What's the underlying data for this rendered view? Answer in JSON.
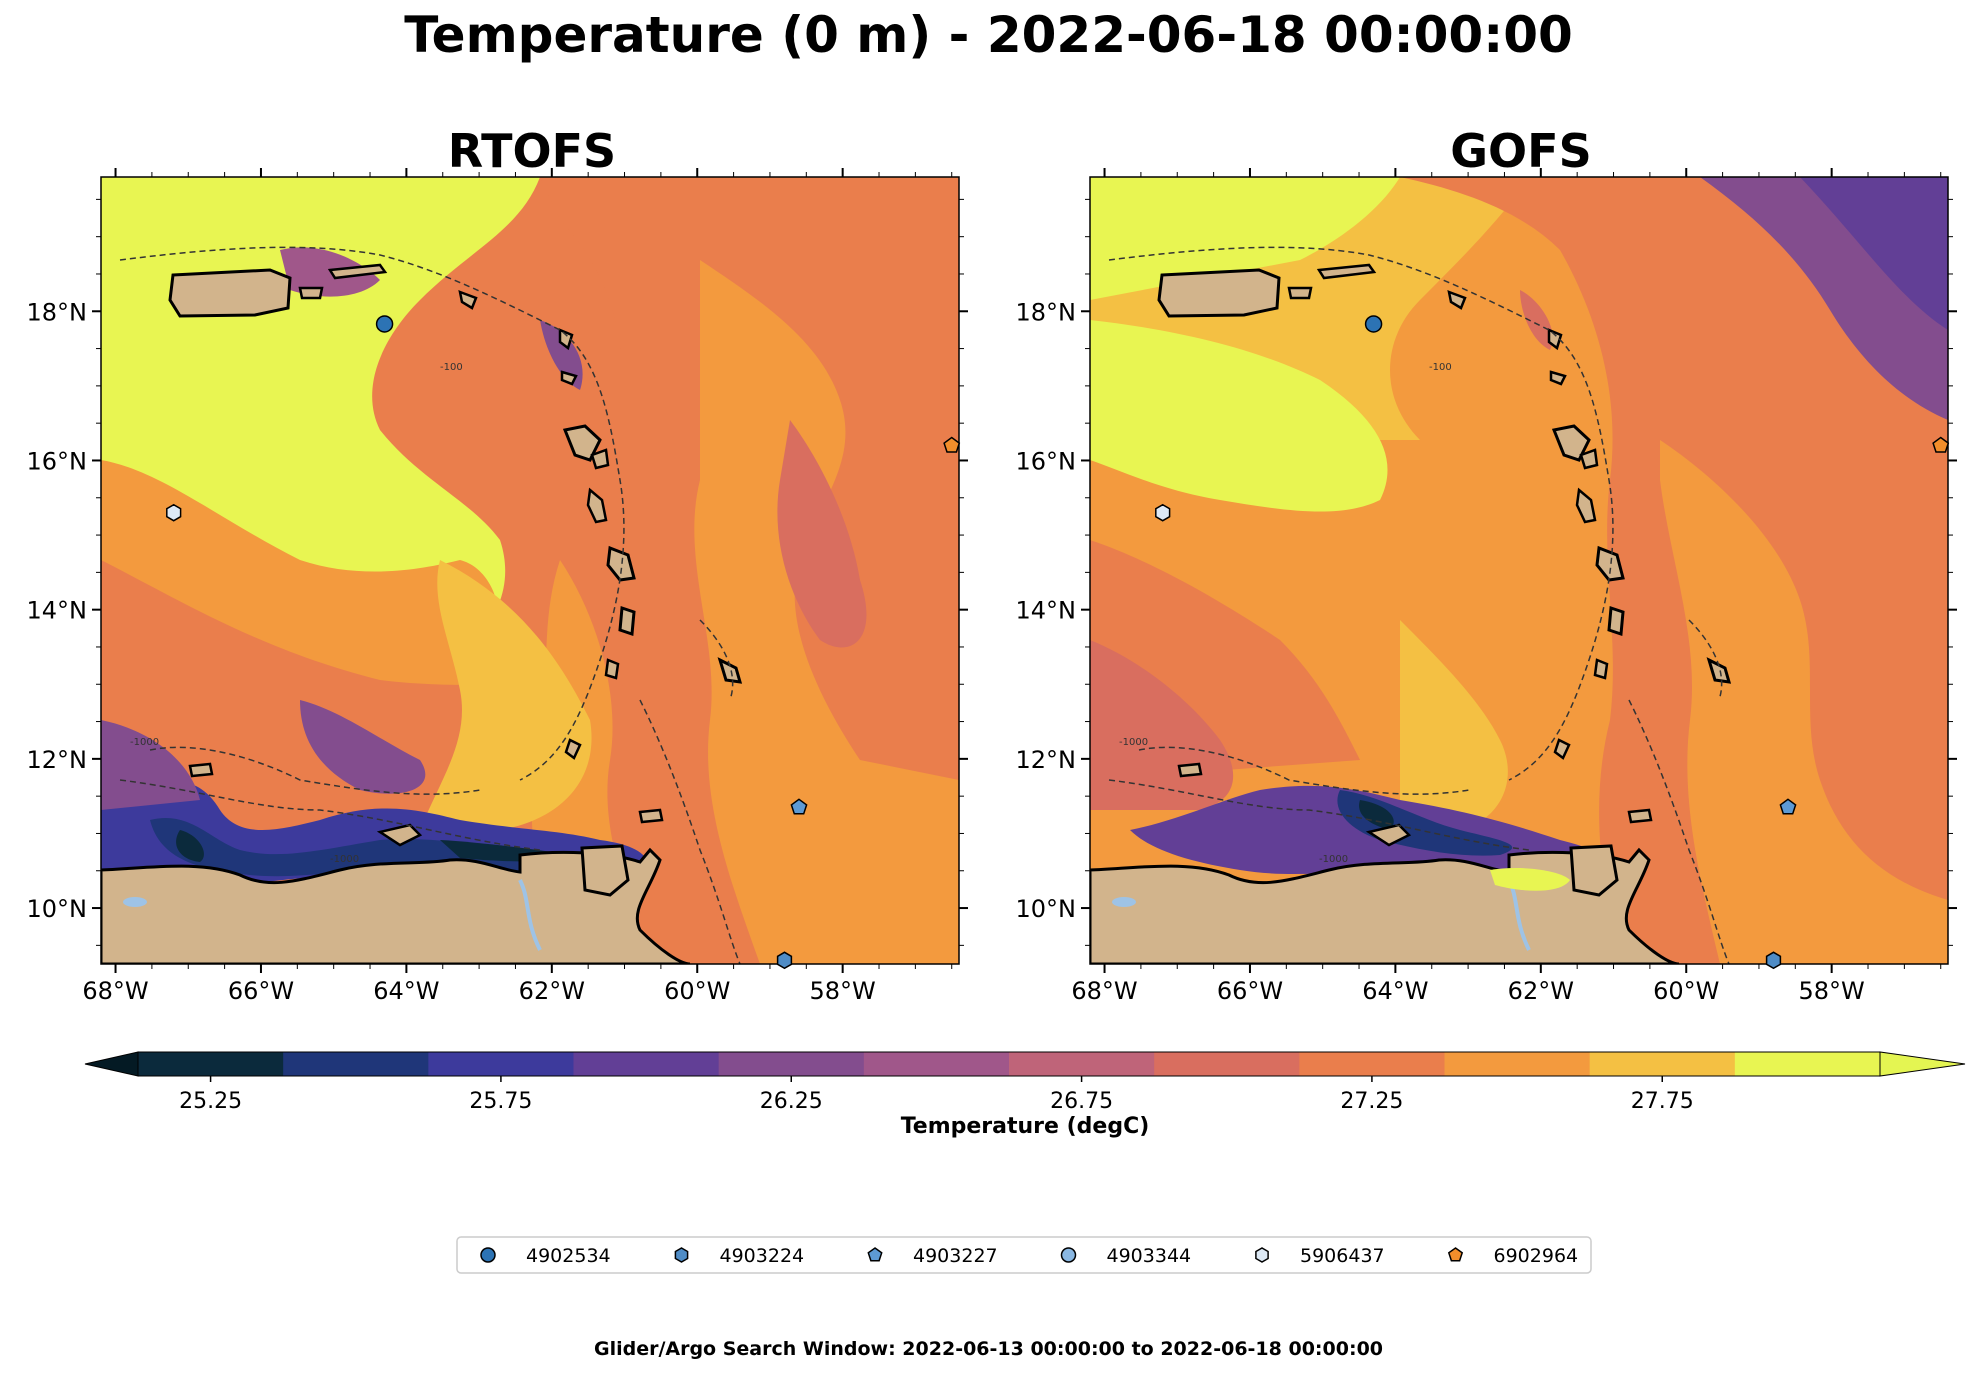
{
  "title": "Temperature (0 m) - 2022-06-18 00:00:00",
  "panels": [
    {
      "title": "RTOFS"
    },
    {
      "title": "GOFS"
    }
  ],
  "axes": {
    "x_ticks": [
      "68°W",
      "66°W",
      "64°W",
      "62°W",
      "60°W",
      "58°W"
    ],
    "y_ticks": [
      "18°N",
      "16°N",
      "14°N",
      "12°N",
      "10°N"
    ],
    "x_values": [
      -68,
      -66,
      -64,
      -62,
      -60,
      -58
    ],
    "y_values": [
      18,
      16,
      14,
      12,
      10
    ],
    "lon_range": [
      -68.2,
      -56.4
    ],
    "lat_range": [
      9.25,
      19.8
    ]
  },
  "bathymetry_labels": [
    "-1000",
    "-100"
  ],
  "colorbar": {
    "label": "Temperature (degC)",
    "ticks": [
      "25.25",
      "25.75",
      "26.25",
      "26.75",
      "27.25",
      "27.75"
    ],
    "levels": [
      25.25,
      25.5,
      25.75,
      26.0,
      26.25,
      26.5,
      26.75,
      27.0,
      27.25,
      27.5,
      27.75,
      28.0
    ],
    "colors": [
      "#0b2a3c",
      "#1f3679",
      "#3d3a9c",
      "#623f96",
      "#834d8e",
      "#a0578a",
      "#bf6479",
      "#d96e5f",
      "#ea7e4c",
      "#f39a3e",
      "#f4c043",
      "#e8f552"
    ],
    "under_color": "#041a24",
    "over_color": "#e4f552"
  },
  "land_color": "#d2b48c",
  "lake_color": "#9ec3e6",
  "legend": [
    {
      "label": "4902534",
      "marker": "circle",
      "color": "#2c73b4"
    },
    {
      "label": "4903224",
      "marker": "hexagon",
      "color": "#4f8cc6"
    },
    {
      "label": "4903227",
      "marker": "pentagon",
      "color": "#5d9ad4"
    },
    {
      "label": "4903344",
      "marker": "circle",
      "color": "#8ab8e3"
    },
    {
      "label": "5906437",
      "marker": "hexagon",
      "color": "#dde9f5"
    },
    {
      "label": "6902964",
      "marker": "pentagon",
      "color": "#f28e2b"
    }
  ],
  "markers": [
    {
      "id": "4902534",
      "lon": -64.3,
      "lat": 17.83
    },
    {
      "id": "5906437",
      "lon": -67.2,
      "lat": 15.3
    },
    {
      "id": "4903227",
      "lon": -58.6,
      "lat": 11.35
    },
    {
      "id": "4903224",
      "lon": -58.8,
      "lat": 9.3
    },
    {
      "id": "6902964",
      "lon": -56.5,
      "lat": 16.2
    }
  ],
  "footer": "Glider/Argo Search Window: 2022-06-13 00:00:00 to 2022-06-18 00:00:00"
}
